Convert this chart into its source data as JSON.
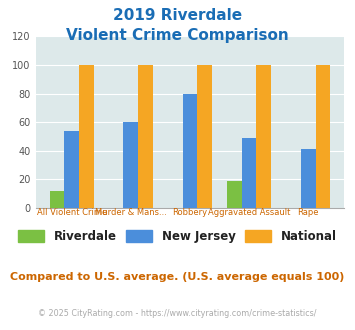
{
  "title_line1": "2019 Riverdale",
  "title_line2": "Violent Crime Comparison",
  "categories": [
    "All Violent Crime",
    "Murder & Mans...",
    "Robbery",
    "Aggravated Assault",
    "Rape"
  ],
  "riverdale": [
    12,
    0,
    0,
    19,
    0
  ],
  "new_jersey": [
    54,
    60,
    80,
    49,
    41
  ],
  "national": [
    100,
    100,
    100,
    100,
    100
  ],
  "colors": {
    "riverdale": "#7bc043",
    "new_jersey": "#4b8edb",
    "national": "#f5a623"
  },
  "ylim": [
    0,
    120
  ],
  "yticks": [
    0,
    20,
    40,
    60,
    80,
    100,
    120
  ],
  "top_labels": [
    "",
    "Murder & Mans...",
    "",
    "Aggravated Assault",
    ""
  ],
  "bot_labels": [
    "All Violent Crime",
    "",
    "Robbery",
    "",
    "Rape"
  ],
  "footnote1": "Compared to U.S. average. (U.S. average equals 100)",
  "footnote2": "© 2025 CityRating.com - https://www.cityrating.com/crime-statistics/",
  "bg_color": "#dde9ea",
  "title_color": "#1a6db5",
  "xlabel_color": "#cc6600",
  "footnote1_color": "#cc6600",
  "footnote2_color": "#aaaaaa",
  "bar_width": 0.25
}
